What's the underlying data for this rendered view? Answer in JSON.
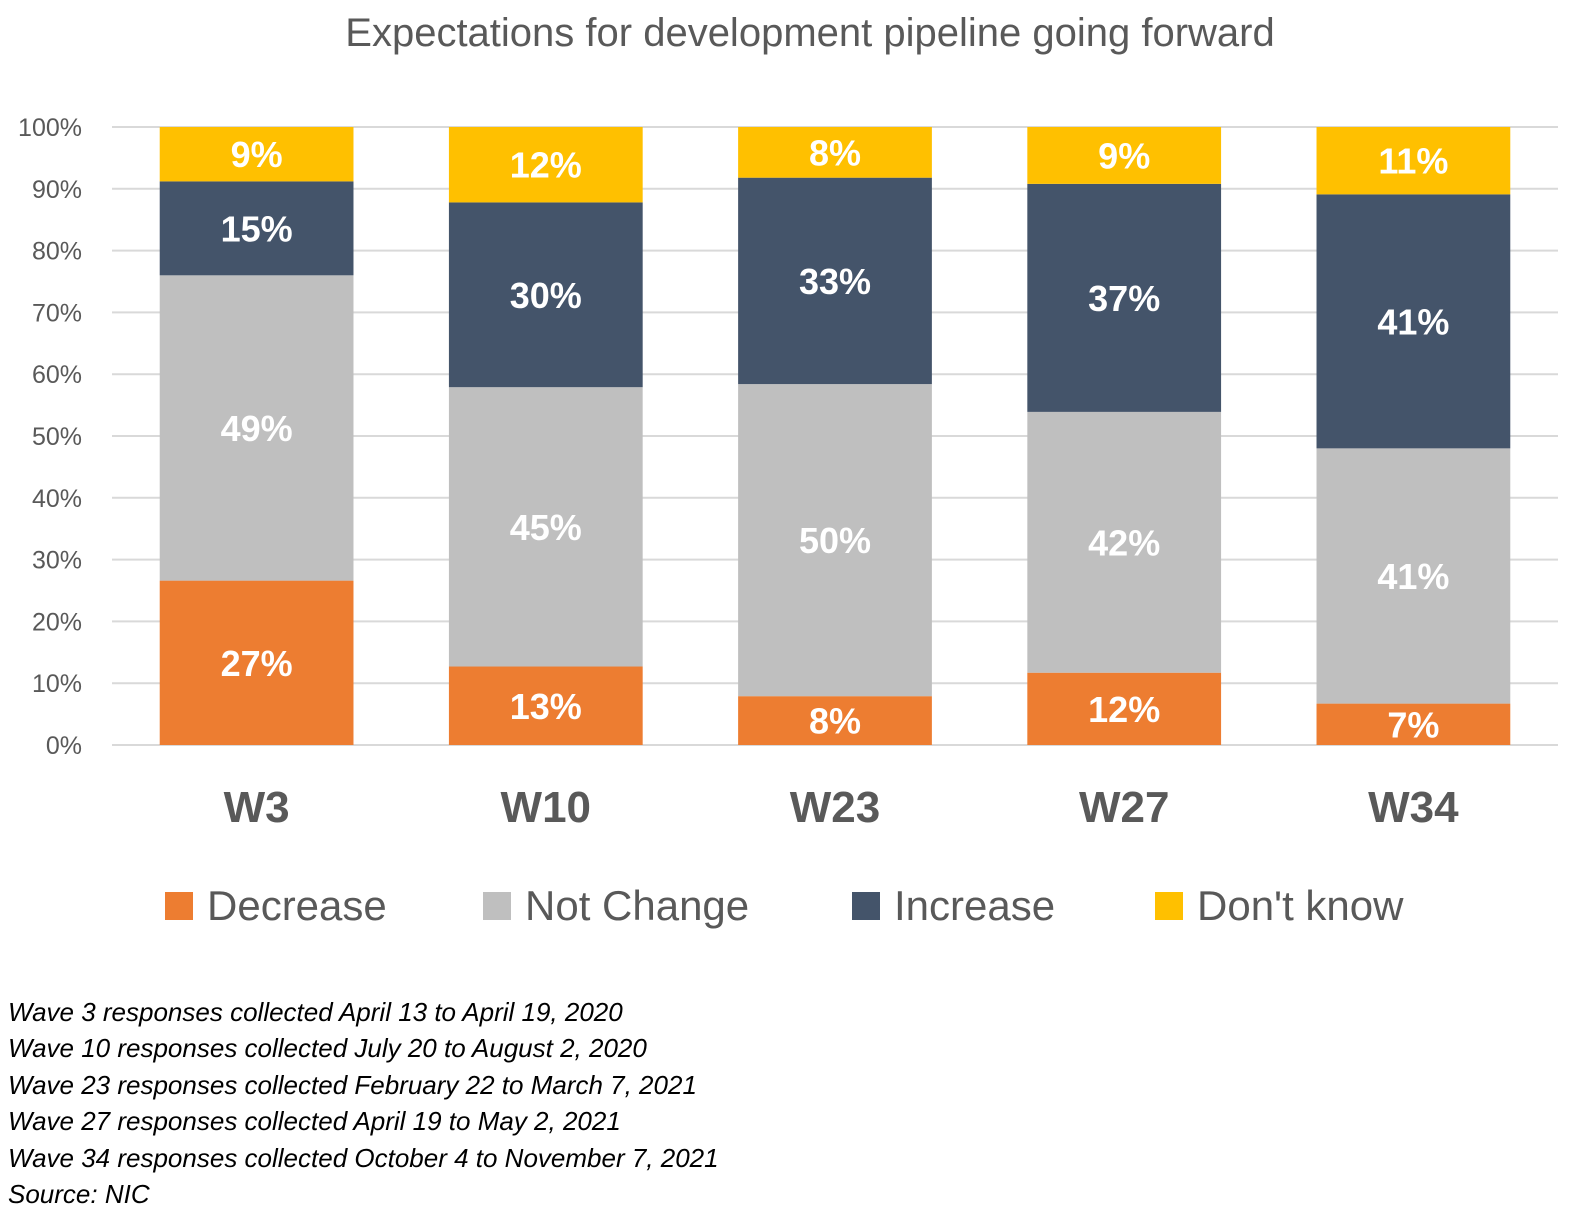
{
  "chart_data": {
    "type": "bar",
    "stacked": true,
    "title": "Expectations for development pipeline going forward",
    "categories": [
      "W3",
      "W10",
      "W23",
      "W27",
      "W34"
    ],
    "ylim": [
      0,
      100
    ],
    "yticks": [
      0,
      10,
      20,
      30,
      40,
      50,
      60,
      70,
      80,
      90,
      100
    ],
    "ytick_labels": [
      "0%",
      "10%",
      "20%",
      "30%",
      "40%",
      "50%",
      "60%",
      "70%",
      "80%",
      "90%",
      "100%"
    ],
    "grid": true,
    "legend_position": "bottom",
    "series": [
      {
        "name": "Decrease",
        "color": "#ED7D31",
        "values": [
          26.6,
          12.7,
          7.9,
          11.7,
          6.7
        ],
        "labels": [
          "27%",
          "13%",
          "8%",
          "12%",
          "7%"
        ]
      },
      {
        "name": "Not Change",
        "color": "#BFBFBF",
        "values": [
          49.4,
          45.2,
          50.5,
          42.2,
          41.3
        ],
        "labels": [
          "49%",
          "45%",
          "50%",
          "42%",
          "41%"
        ]
      },
      {
        "name": "Increase",
        "color": "#44546A",
        "values": [
          15.2,
          29.9,
          33.4,
          36.9,
          41.1
        ],
        "labels": [
          "15%",
          "30%",
          "33%",
          "37%",
          "41%"
        ]
      },
      {
        "name": "Don't know",
        "color": "#FFC000",
        "values": [
          8.8,
          12.2,
          8.2,
          9.2,
          10.9
        ],
        "labels": [
          "9%",
          "12%",
          "8%",
          "9%",
          "11%"
        ]
      }
    ]
  },
  "notes": [
    "Wave 3 responses collected April 13 to April 19, 2020",
    "Wave 10 responses collected July 20 to August 2, 2020",
    "Wave 23 responses collected February 22 to March 7, 2021",
    "Wave 27 responses collected April 19 to May 2, 2021",
    "Wave 34 responses collected October 4 to November 7, 2021",
    "Source: NIC"
  ]
}
